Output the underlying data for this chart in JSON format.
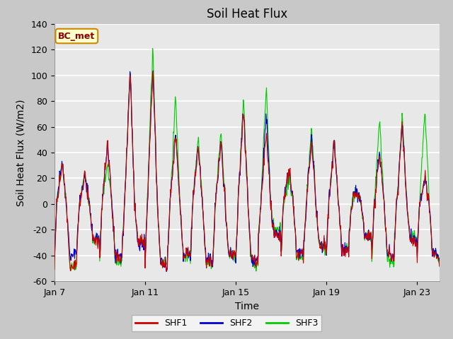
{
  "title": "Soil Heat Flux",
  "xlabel": "Time",
  "ylabel": "Soil Heat Flux (W/m2)",
  "ylim": [
    -60,
    140
  ],
  "yticks": [
    -60,
    -40,
    -20,
    0,
    20,
    40,
    60,
    80,
    100,
    120,
    140
  ],
  "xtick_labels": [
    "Jan 7",
    "Jan 11",
    "Jan 15",
    "Jan 19",
    "Jan 23"
  ],
  "xtick_positions": [
    0,
    4,
    8,
    12,
    16
  ],
  "legend_labels": [
    "SHF1",
    "SHF2",
    "SHF3"
  ],
  "legend_colors": [
    "#cc0000",
    "#0000cc",
    "#00cc00"
  ],
  "annotation_text": "BC_met",
  "annotation_bg": "#ffffcc",
  "annotation_border": "#cc8800",
  "plot_bg": "#e8e8e8",
  "grid_color": "#ffffff",
  "fig_bg": "#c8c8c8",
  "n_days": 17,
  "points_per_day": 48,
  "title_fontsize": 12,
  "label_fontsize": 10,
  "tick_fontsize": 9
}
